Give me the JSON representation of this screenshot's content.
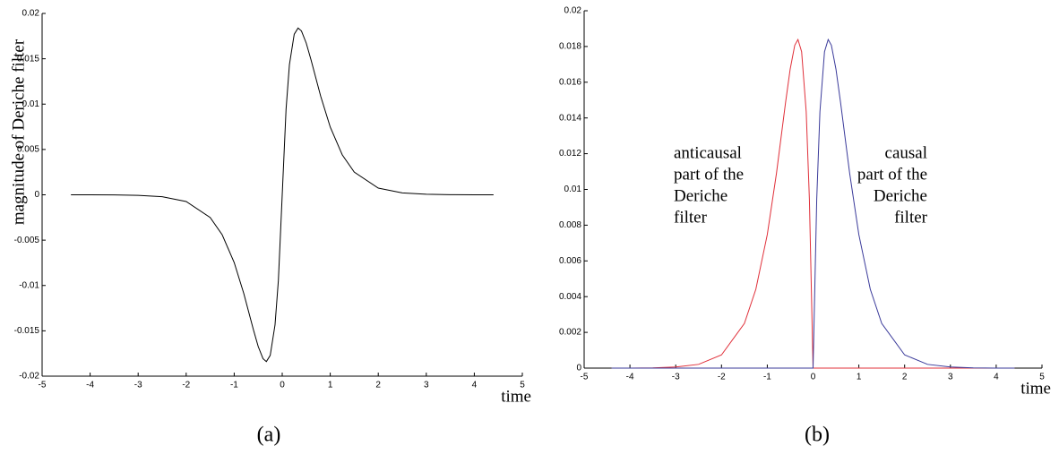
{
  "chart_data": [
    {
      "type": "line",
      "caption": "(a)",
      "xlabel": "time",
      "ylabel": "magnitude of Deriche filter",
      "x": [
        -4.4,
        -4,
        -3.5,
        -3,
        -2.5,
        -2,
        -1.5,
        -1.25,
        -1,
        -0.8,
        -0.6,
        -0.5,
        -0.4,
        -0.33,
        -0.25,
        -0.15,
        -0.08,
        0,
        0.08,
        0.15,
        0.25,
        0.33,
        0.4,
        0.5,
        0.6,
        0.8,
        1,
        1.25,
        1.5,
        2,
        2.5,
        3,
        3.5,
        4,
        4.4
      ],
      "series": [
        {
          "color": "#000000",
          "values": [
            0,
            0,
            -1e-05,
            -6e-05,
            -0.00021,
            -0.00074,
            -0.0025,
            -0.00441,
            -0.00747,
            -0.01089,
            -0.01488,
            -0.01673,
            -0.01807,
            -0.01839,
            -0.01771,
            -0.01435,
            -0.00944,
            0,
            0.00944,
            0.01435,
            0.01771,
            0.01839,
            0.01807,
            0.01673,
            0.01488,
            0.01089,
            0.00747,
            0.00441,
            0.0025,
            0.00074,
            0.00021,
            6e-05,
            1e-05,
            0,
            0
          ]
        }
      ],
      "xlim": [
        -5,
        5
      ],
      "xticks": [
        -5,
        -4,
        -3,
        -2,
        -1,
        0,
        1,
        2,
        3,
        4,
        5
      ],
      "ylim": [
        -0.02,
        0.02
      ],
      "yticks": [
        -0.02,
        -0.015,
        -0.01,
        -0.005,
        0,
        0.005,
        0.01,
        0.015,
        0.02
      ]
    },
    {
      "type": "line",
      "caption": "(b)",
      "xlabel": "time",
      "x": [
        -4.4,
        -4,
        -3.5,
        -3,
        -2.5,
        -2,
        -1.5,
        -1.25,
        -1,
        -0.8,
        -0.6,
        -0.5,
        -0.4,
        -0.33,
        -0.25,
        -0.15,
        -0.08,
        0,
        0.08,
        0.15,
        0.25,
        0.33,
        0.4,
        0.5,
        0.6,
        0.8,
        1,
        1.25,
        1.5,
        2,
        2.5,
        3,
        3.5,
        4,
        4.4
      ],
      "series": [
        {
          "color": "#e0303a",
          "values": [
            0,
            0,
            1e-05,
            6e-05,
            0.00021,
            0.00074,
            0.0025,
            0.00441,
            0.00747,
            0.01089,
            0.01488,
            0.01673,
            0.01807,
            0.01839,
            0.01771,
            0.01435,
            0.00944,
            0,
            0,
            0,
            0,
            0,
            0,
            0,
            0,
            0,
            0,
            0,
            0,
            0,
            0,
            0,
            0,
            0,
            0
          ]
        },
        {
          "color": "#3a3a9a",
          "values": [
            0,
            0,
            0,
            0,
            0,
            0,
            0,
            0,
            0,
            0,
            0,
            0,
            0,
            0,
            0,
            0,
            0,
            0,
            0.00944,
            0.01435,
            0.01771,
            0.01839,
            0.01807,
            0.01673,
            0.01488,
            0.01089,
            0.00747,
            0.00441,
            0.0025,
            0.00074,
            0.00021,
            6e-05,
            1e-05,
            0,
            0
          ]
        }
      ],
      "xlim": [
        -5,
        5
      ],
      "xticks": [
        -5,
        -4,
        -3,
        -2,
        -1,
        0,
        1,
        2,
        3,
        4,
        5
      ],
      "ylim": [
        0,
        0.02
      ],
      "yticks": [
        0,
        0.002,
        0.004,
        0.006,
        0.008,
        0.01,
        0.012,
        0.014,
        0.016,
        0.018,
        0.02
      ],
      "annotations": [
        {
          "lines": [
            "anticausal",
            "part of the",
            "Deriche",
            "filter"
          ]
        },
        {
          "lines": [
            "causal",
            "part of the",
            "Deriche",
            "filter"
          ]
        }
      ]
    }
  ]
}
